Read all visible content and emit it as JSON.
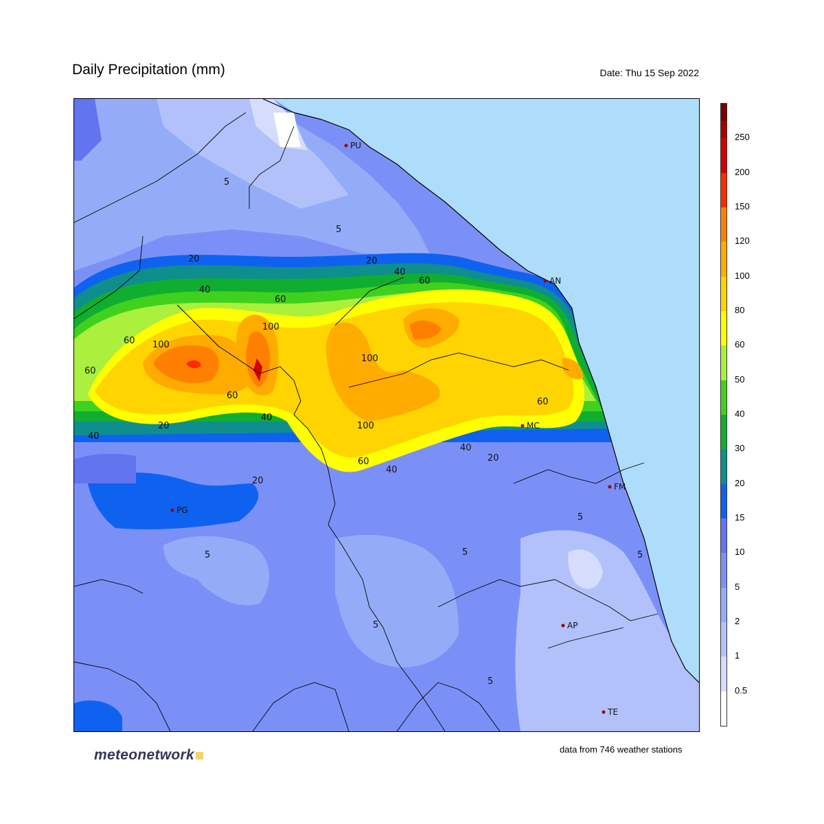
{
  "header": {
    "title": "Daily Precipitation (mm)",
    "date": "Date: Thu 15 Sep 2022"
  },
  "legend": {
    "unit": "mm",
    "colors": [
      "#ffffff",
      "#d6dcfb",
      "#b3c1fb",
      "#94acf8",
      "#7b90f7",
      "#6374ef",
      "#0f62ef",
      "#0f8e8e",
      "#10ae30",
      "#3fd11e",
      "#aaf03c",
      "#ffff00",
      "#ffd400",
      "#ffab00",
      "#ff8000",
      "#ff2b00",
      "#d40000",
      "#a80000",
      "#780000"
    ],
    "labels": [
      "0.5",
      "1",
      "2",
      "5",
      "10",
      "15",
      "20",
      "30",
      "40",
      "50",
      "60",
      "80",
      "100",
      "120",
      "150",
      "200",
      "250"
    ]
  },
  "map": {
    "sea_color": "#aedcfb",
    "cities": [
      {
        "code": "PU"
      },
      {
        "code": "AN"
      },
      {
        "code": "MC"
      },
      {
        "code": "FM"
      },
      {
        "code": "PG"
      },
      {
        "code": "AP"
      },
      {
        "code": "TE"
      }
    ],
    "contour_labels": [
      "5",
      "5",
      "5",
      "5",
      "5",
      "5",
      "5",
      "5",
      "20",
      "20",
      "20",
      "20",
      "20",
      "40",
      "40",
      "40",
      "40",
      "40",
      "40",
      "60",
      "60",
      "60",
      "60",
      "60",
      "60",
      "60",
      "100",
      "100",
      "100",
      "100"
    ]
  },
  "footer": {
    "source": "data from 746 weather stations",
    "brand": "meteonetwork"
  }
}
